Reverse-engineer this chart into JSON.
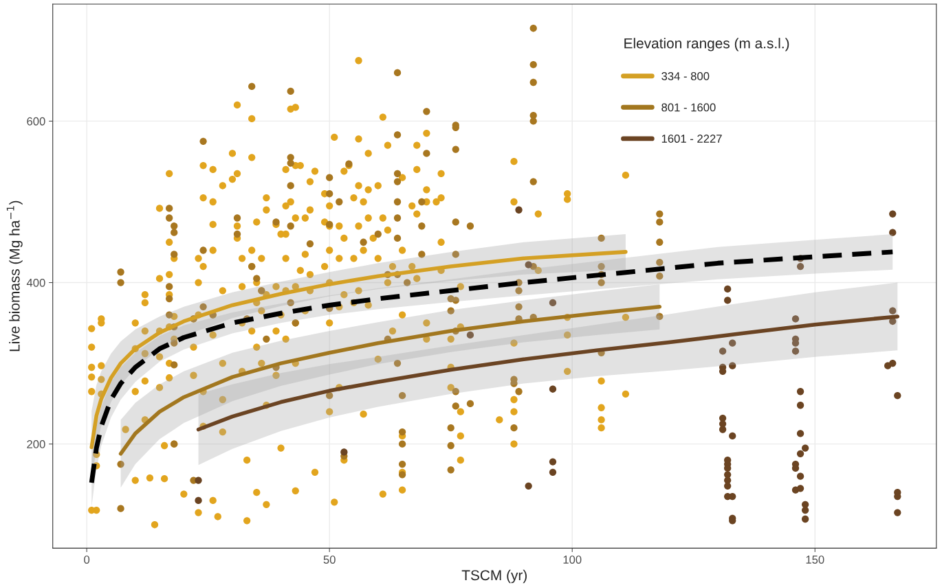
{
  "chart_data": {
    "type": "scatter",
    "xlabel": "TSCM (yr)",
    "ylabel": "Live biomass (Mg ha$^{−1}$)",
    "legend_title": "Elevation ranges (m a.s.l.)",
    "xlim": [
      -7,
      175
    ],
    "ylim": [
      71,
      745
    ],
    "xticks": [
      0,
      50,
      100,
      150
    ],
    "yticks": [
      200,
      400,
      600
    ],
    "grid": true,
    "legend": "top right",
    "marker": "none",
    "series": [
      {
        "marker": "circle",
        "color": "#e2a51e",
        "x": [
          1,
          1,
          1,
          1,
          1,
          1,
          2,
          2,
          2,
          3,
          3,
          3,
          3,
          3,
          8,
          10,
          10,
          10,
          10,
          12,
          12,
          12,
          12,
          12,
          12,
          13,
          14,
          15,
          15,
          15,
          15,
          15,
          16,
          16,
          17,
          17,
          17,
          17,
          17,
          17,
          17,
          18,
          18,
          18,
          18,
          20,
          22,
          22,
          22,
          23,
          23,
          23,
          23,
          24,
          24,
          24,
          24,
          24,
          26,
          26,
          26,
          26,
          26,
          26,
          26,
          27,
          28,
          28,
          28,
          28,
          28,
          30,
          30,
          31,
          31,
          31,
          31,
          32,
          32,
          32,
          32,
          33,
          33,
          34,
          34,
          34,
          34,
          34,
          35,
          35,
          35,
          35,
          35,
          36,
          36,
          36,
          36,
          37,
          37,
          37,
          37,
          37,
          39,
          39,
          39,
          39,
          40,
          40,
          40,
          41,
          41,
          41,
          41,
          41,
          41,
          42,
          42,
          43,
          43,
          43,
          43,
          43,
          43,
          43,
          44,
          44,
          45,
          45,
          45,
          46,
          46,
          46,
          46,
          47,
          47,
          49,
          49,
          49,
          50,
          50,
          50,
          50,
          50,
          50,
          51,
          51,
          52,
          52,
          52,
          52,
          53,
          53,
          53,
          53,
          54,
          55,
          55,
          55,
          56,
          56,
          56,
          56,
          56,
          57,
          57,
          57,
          58,
          58,
          58,
          58,
          59,
          60,
          60,
          60,
          61,
          61,
          61,
          62,
          62,
          62,
          63,
          63,
          65,
          65,
          65,
          65,
          65,
          65,
          67,
          67,
          68,
          68,
          68,
          68,
          70,
          70,
          70,
          70,
          70,
          72,
          73,
          73,
          73,
          73,
          75,
          75,
          75,
          77,
          77,
          77,
          77,
          77,
          85,
          88,
          88,
          88,
          88,
          88,
          88,
          93,
          93,
          99,
          99,
          99,
          99,
          99,
          106,
          106,
          106,
          106,
          111,
          111,
          111
        ],
        "values": [
          343,
          320,
          295,
          283,
          265,
          118,
          118,
          187,
          173,
          355,
          350,
          297,
          280,
          262,
          218,
          350,
          318,
          265,
          155,
          385,
          375,
          340,
          312,
          278,
          230,
          158,
          100,
          492,
          405,
          340,
          308,
          270,
          157,
          198,
          535,
          450,
          410,
          385,
          345,
          300,
          282,
          430,
          358,
          330,
          200,
          138,
          355,
          320,
          285,
          430,
          400,
          360,
          115,
          545,
          505,
          420,
          265,
          222,
          540,
          500,
          472,
          440,
          360,
          335,
          130,
          110,
          520,
          390,
          300,
          255,
          215,
          560,
          528,
          620,
          535,
          470,
          455,
          430,
          395,
          350,
          290,
          180,
          105,
          603,
          555,
          440,
          420,
          340,
          475,
          400,
          375,
          320,
          140,
          430,
          390,
          365,
          300,
          505,
          490,
          385,
          248,
          125,
          472,
          395,
          340,
          285,
          460,
          360,
          195,
          540,
          495,
          460,
          430,
          390,
          330,
          615,
          500,
          617,
          545,
          480,
          395,
          350,
          300,
          142,
          545,
          415,
          480,
          435,
          365,
          525,
          490,
          410,
          390,
          538,
          165,
          510,
          475,
          420,
          495,
          470,
          440,
          400,
          350,
          240,
          580,
          128,
          470,
          430,
          370,
          270,
          538,
          455,
          385,
          180,
          545,
          505,
          430,
          375,
          675,
          578,
          520,
          470,
          390,
          500,
          440,
          237,
          560,
          515,
          480,
          372,
          455,
          520,
          430,
          305,
          605,
          480,
          138,
          570,
          465,
          400,
          420,
          340,
          530,
          440,
          360,
          210,
          165,
          143,
          495,
          420,
          540,
          485,
          405,
          570,
          585,
          515,
          500,
          350,
          330,
          500,
          535,
          505,
          450,
          415,
          330,
          295,
          270,
          395,
          345,
          240,
          210,
          180,
          230,
          550,
          500,
          325,
          255,
          240,
          200,
          485,
          415,
          510,
          503,
          357,
          335,
          290,
          278,
          245,
          230,
          220,
          533,
          357,
          262
        ]
      },
      {
        "marker": "circle",
        "color": "#a87720",
        "x": [
          7,
          7,
          7,
          7,
          17,
          17,
          17,
          17,
          17,
          18,
          18,
          18,
          18,
          18,
          18,
          18,
          22,
          22,
          24,
          24,
          24,
          26,
          31,
          31,
          33,
          34,
          34,
          35,
          36,
          37,
          39,
          39,
          42,
          42,
          42,
          42,
          42,
          42,
          43,
          46,
          50,
          50,
          50,
          50,
          50,
          52,
          53,
          54,
          57,
          60,
          62,
          62,
          64,
          64,
          64,
          64,
          64,
          64,
          64,
          64,
          64,
          65,
          65,
          65,
          65,
          65,
          66,
          69,
          69,
          69,
          70,
          70,
          75,
          75,
          75,
          75,
          75,
          76,
          76,
          76,
          76,
          76,
          76,
          76,
          76,
          76,
          79,
          79,
          88,
          88,
          88,
          89,
          89,
          89,
          89,
          89,
          92,
          92,
          92,
          92,
          92,
          92,
          92,
          92,
          106,
          106,
          106,
          106,
          106,
          118,
          118,
          118,
          118,
          118,
          118
        ],
        "values": [
          413,
          400,
          175,
          120,
          492,
          480,
          395,
          380,
          360,
          470,
          462,
          435,
          345,
          325,
          298,
          200,
          355,
          155,
          575,
          440,
          370,
          360,
          480,
          460,
          355,
          643,
          420,
          405,
          390,
          330,
          475,
          295,
          637,
          555,
          548,
          520,
          470,
          375,
          350,
          448,
          530,
          510,
          472,
          368,
          260,
          500,
          185,
          547,
          450,
          460,
          410,
          330,
          660,
          583,
          535,
          525,
          500,
          480,
          455,
          410,
          300,
          260,
          215,
          200,
          175,
          162,
          400,
          500,
          470,
          435,
          612,
          560,
          380,
          365,
          220,
          198,
          168,
          595,
          592,
          565,
          475,
          435,
          378,
          340,
          265,
          247,
          470,
          250,
          280,
          275,
          220,
          400,
          390,
          370,
          355,
          265,
          715,
          670,
          648,
          607,
          600,
          525,
          420,
          357,
          455,
          420,
          410,
          400,
          313,
          485,
          475,
          450,
          425,
          408,
          358
        ]
      },
      {
        "marker": "circle",
        "color": "#6b4422",
        "x": [
          23,
          23,
          53,
          79,
          89,
          91,
          91,
          96,
          96,
          96,
          96,
          131,
          131,
          131,
          131,
          131,
          131,
          132,
          132,
          132,
          132,
          132,
          132,
          132,
          132,
          132,
          133,
          133,
          133,
          133,
          133,
          133,
          146,
          146,
          146,
          146,
          146,
          146,
          146,
          147,
          147,
          147,
          147,
          147,
          147,
          147,
          147,
          148,
          148,
          148,
          148,
          165,
          166,
          166,
          166,
          166,
          166,
          167,
          167,
          167,
          167
        ],
        "values": [
          155,
          130,
          190,
          335,
          490,
          148,
          422,
          375,
          268,
          178,
          165,
          315,
          295,
          290,
          232,
          225,
          218,
          392,
          378,
          180,
          175,
          170,
          162,
          155,
          148,
          135,
          325,
          297,
          210,
          135,
          108,
          105,
          355,
          330,
          325,
          315,
          175,
          170,
          143,
          430,
          420,
          265,
          248,
          213,
          188,
          160,
          145,
          195,
          125,
          118,
          107,
          297,
          485,
          462,
          365,
          352,
          300,
          260,
          140,
          135,
          115
        ]
      },
      {
        "type": "line",
        "name": "334 - 800",
        "color": "#d4a024",
        "line_style": "solid",
        "x": [
          1,
          2,
          3,
          5,
          7,
          10,
          15,
          20,
          30,
          40,
          50,
          60,
          75,
          90,
          111
        ],
        "values": [
          196,
          235,
          256,
          282,
          300,
          318,
          338,
          352,
          372,
          386,
          398,
          408,
          420,
          430,
          438
        ],
        "lower": [
          151,
          197,
          222,
          252,
          273,
          294,
          318,
          334,
          356,
          371,
          383,
          392,
          402,
          410,
          416
        ],
        "upper": [
          241,
          273,
          290,
          312,
          327,
          342,
          358,
          370,
          388,
          401,
          413,
          424,
          438,
          450,
          460
        ]
      },
      {
        "type": "line",
        "name": "801 - 1600",
        "color": "#a2771f",
        "line_style": "solid",
        "x": [
          7,
          10,
          15,
          20,
          30,
          40,
          50,
          60,
          75,
          90,
          105,
          118
        ],
        "values": [
          188,
          213,
          240,
          258,
          283,
          300,
          313,
          325,
          340,
          352,
          362,
          370
        ],
        "lower": [
          146,
          175,
          206,
          226,
          253,
          272,
          286,
          299,
          314,
          326,
          335,
          342
        ],
        "upper": [
          230,
          251,
          274,
          290,
          313,
          328,
          340,
          351,
          366,
          378,
          389,
          398
        ]
      },
      {
        "type": "line",
        "name": "1601 - 2227",
        "color": "#6b4423",
        "line_style": "solid",
        "x": [
          23,
          30,
          40,
          50,
          60,
          75,
          90,
          105,
          120,
          135,
          150,
          167
        ],
        "values": [
          218,
          234,
          252,
          266,
          277,
          292,
          305,
          316,
          326,
          337,
          348,
          358
        ],
        "lower": [
          174,
          194,
          216,
          233,
          246,
          262,
          275,
          284,
          291,
          299,
          308,
          316
        ],
        "upper": [
          262,
          274,
          288,
          299,
          308,
          322,
          335,
          348,
          361,
          375,
          388,
          400
        ]
      },
      {
        "type": "line",
        "color": "#000000",
        "line_style": "dashed",
        "x": [
          1,
          2,
          3,
          5,
          7,
          10,
          15,
          20,
          30,
          40,
          50,
          60,
          75,
          90,
          110,
          130,
          150,
          166
        ],
        "values": [
          152,
          195,
          222,
          255,
          275,
          295,
          318,
          332,
          350,
          362,
          372,
          380,
          390,
          400,
          412,
          424,
          432,
          438
        ],
        "lower": [
          122,
          169,
          198,
          233,
          255,
          277,
          302,
          317,
          337,
          350,
          360,
          367,
          376,
          384,
          394,
          404,
          411,
          416
        ],
        "upper": [
          182,
          221,
          246,
          277,
          295,
          313,
          334,
          347,
          363,
          374,
          384,
          393,
          404,
          416,
          430,
          444,
          453,
          460
        ]
      }
    ]
  }
}
